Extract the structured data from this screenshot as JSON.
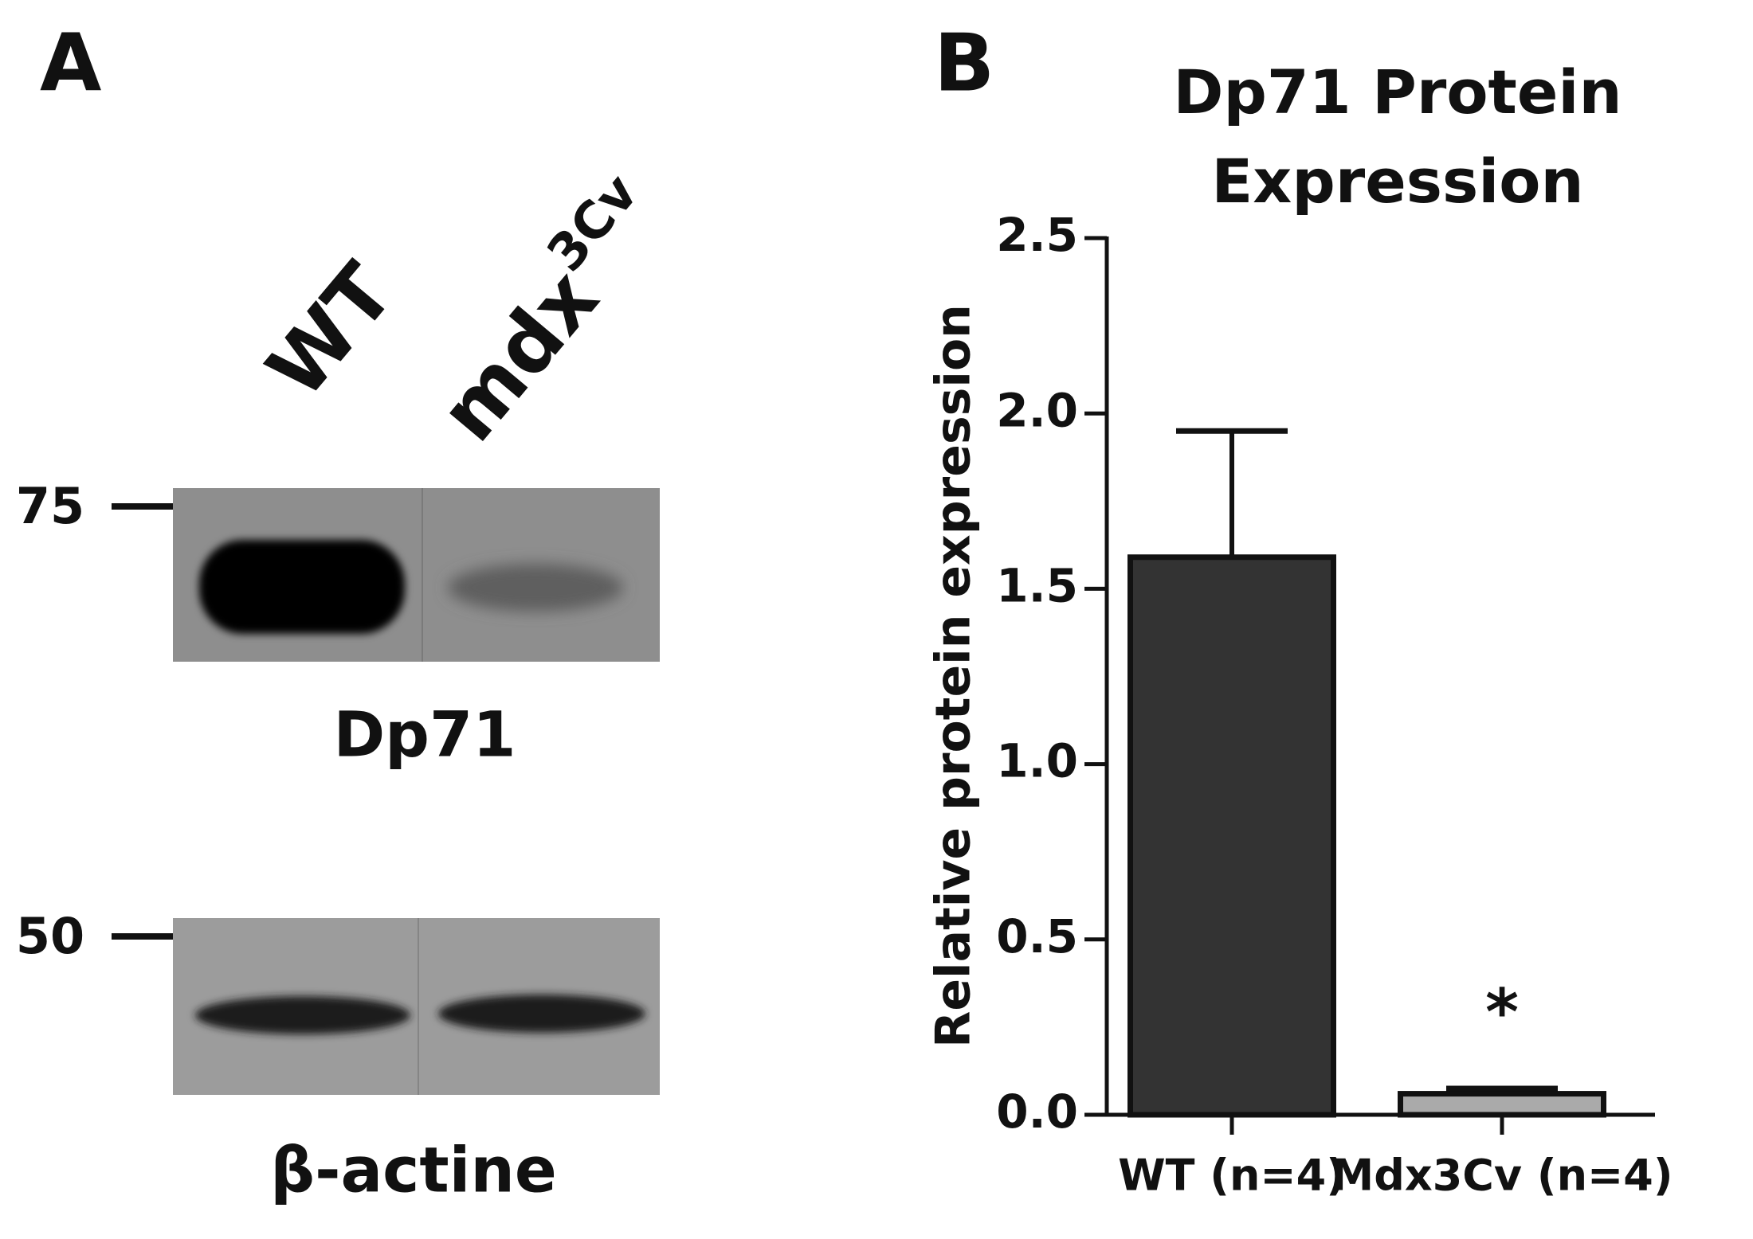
{
  "panel_a": {
    "label": "A",
    "lanes": [
      {
        "text": "WT"
      },
      {
        "text": "mdx",
        "superscript": "3Cv"
      }
    ],
    "blots": [
      {
        "marker": 75,
        "label": "Dp71"
      },
      {
        "marker": 50,
        "label": "β-actine"
      }
    ]
  },
  "panel_b_label": "B",
  "chart_data": {
    "type": "bar",
    "title": "Dp71 Protein Expression",
    "ylabel": "Relative protein expression",
    "categories": [
      "WT (n=4)",
      "Mdx3Cv (n=4)"
    ],
    "values": [
      1.59,
      0.06
    ],
    "errors": [
      0.36,
      0.015
    ],
    "colors": [
      "#333333",
      "#aaaaaa"
    ],
    "ylim": [
      0,
      2.5
    ],
    "yticks": [
      {
        "value": 0,
        "label": "0.0"
      },
      0.5,
      {
        "value": 1,
        "label": "1.0"
      },
      1.5,
      {
        "value": 2,
        "label": "2.0"
      },
      2.5
    ],
    "annotation": "*"
  }
}
